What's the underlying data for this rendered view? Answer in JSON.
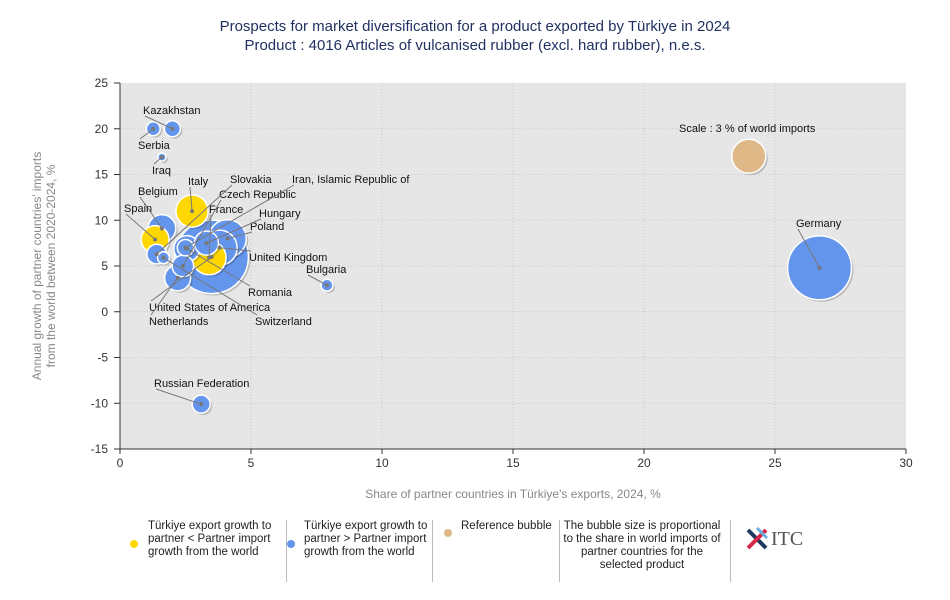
{
  "title": "Prospects for market diversification for a product exported by Türkiye in 2024",
  "subtitle": "Product : 4016 Articles of vulcanised rubber (excl. hard rubber), n.e.s.",
  "chart_data": {
    "type": "scatter",
    "subtype": "bubble",
    "xlabel": "Share of partner countries in Türkiye's exports, 2024, %",
    "ylabel": [
      "Annual growth of partner countries' imports",
      "from the world between 2020-2024, %"
    ],
    "xlim": [
      0,
      30
    ],
    "ylim": [
      -15,
      25
    ],
    "xticks": [
      "0",
      "5",
      "10",
      "15",
      "20",
      "25",
      "30"
    ],
    "yticks": [
      "-15",
      "-10",
      "-5",
      "0",
      "5",
      "10",
      "15",
      "20",
      "25"
    ],
    "grid": true,
    "colors": {
      "lower": "#ffd700",
      "higher": "#6495ed",
      "reference": "#deb887",
      "plot_bg": "#e6e6e6"
    },
    "points": [
      {
        "name": "United States of America",
        "x": 3.5,
        "y": 6.0,
        "size": 14,
        "group": "higher"
      },
      {
        "name": "Germany",
        "x": 26.7,
        "y": 4.8,
        "size": 10.6,
        "group": "higher"
      },
      {
        "name": "Poland",
        "x": 4.1,
        "y": 8.0,
        "size": 3.7,
        "group": "higher"
      },
      {
        "name": "United Kingdom",
        "x": 3.8,
        "y": 7.0,
        "size": 3.2,
        "group": "higher"
      },
      {
        "name": "France",
        "x": 3.4,
        "y": 5.9,
        "size": 3.0,
        "group": "lower"
      },
      {
        "name": "Italy",
        "x": 2.75,
        "y": 11.0,
        "size": 2.7,
        "group": "lower"
      },
      {
        "name": "Hungary",
        "x": 3.3,
        "y": 7.5,
        "size": 1.5,
        "group": "higher"
      },
      {
        "name": "Belgium",
        "x": 1.6,
        "y": 9.1,
        "size": 2.0,
        "group": "higher"
      },
      {
        "name": "Spain",
        "x": 1.34,
        "y": 7.9,
        "size": 2.0,
        "group": "lower"
      },
      {
        "name": "Romania",
        "x": 2.55,
        "y": 6.9,
        "size": 1.75,
        "group": "higher"
      },
      {
        "name": "Czech Republic",
        "x": 2.4,
        "y": 5.0,
        "size": 1.2,
        "group": "higher"
      },
      {
        "name": "Netherlands",
        "x": 2.2,
        "y": 3.7,
        "size": 1.75,
        "group": "higher"
      },
      {
        "name": "Slovakia",
        "x": 1.4,
        "y": 6.3,
        "size": 1.0,
        "group": "higher"
      },
      {
        "name": "Iran, Islamic Republic of",
        "x": 2.5,
        "y": 7.0,
        "size": 0.7,
        "group": "higher"
      },
      {
        "name": "Switzerland",
        "x": 1.66,
        "y": 5.9,
        "size": 0.37,
        "group": "higher"
      },
      {
        "name": "Kazakhstan",
        "x": 2.0,
        "y": 20.0,
        "size": 0.66,
        "group": "higher"
      },
      {
        "name": "Serbia",
        "x": 1.27,
        "y": 20.0,
        "size": 0.5,
        "group": "higher"
      },
      {
        "name": "Iraq",
        "x": 1.6,
        "y": 16.9,
        "size": 0.17,
        "group": "higher"
      },
      {
        "name": "Bulgaria",
        "x": 7.9,
        "y": 2.9,
        "size": 0.37,
        "group": "higher"
      },
      {
        "name": "Russian Federation",
        "x": 3.1,
        "y": -10.1,
        "size": 0.84,
        "group": "higher"
      }
    ],
    "reference": {
      "label": "Scale : 3 % of world imports",
      "x": 24.0,
      "y": 17.0,
      "size": 3
    }
  },
  "legend": {
    "lower": "Türkiye export growth to partner < Partner import growth from the world",
    "higher": "Türkiye export growth to partner > Partner import growth from the world",
    "reference": "Reference bubble",
    "note": "The bubble size is proportional to the share in world imports of partner countries for the selected product"
  },
  "logo": "ITC"
}
